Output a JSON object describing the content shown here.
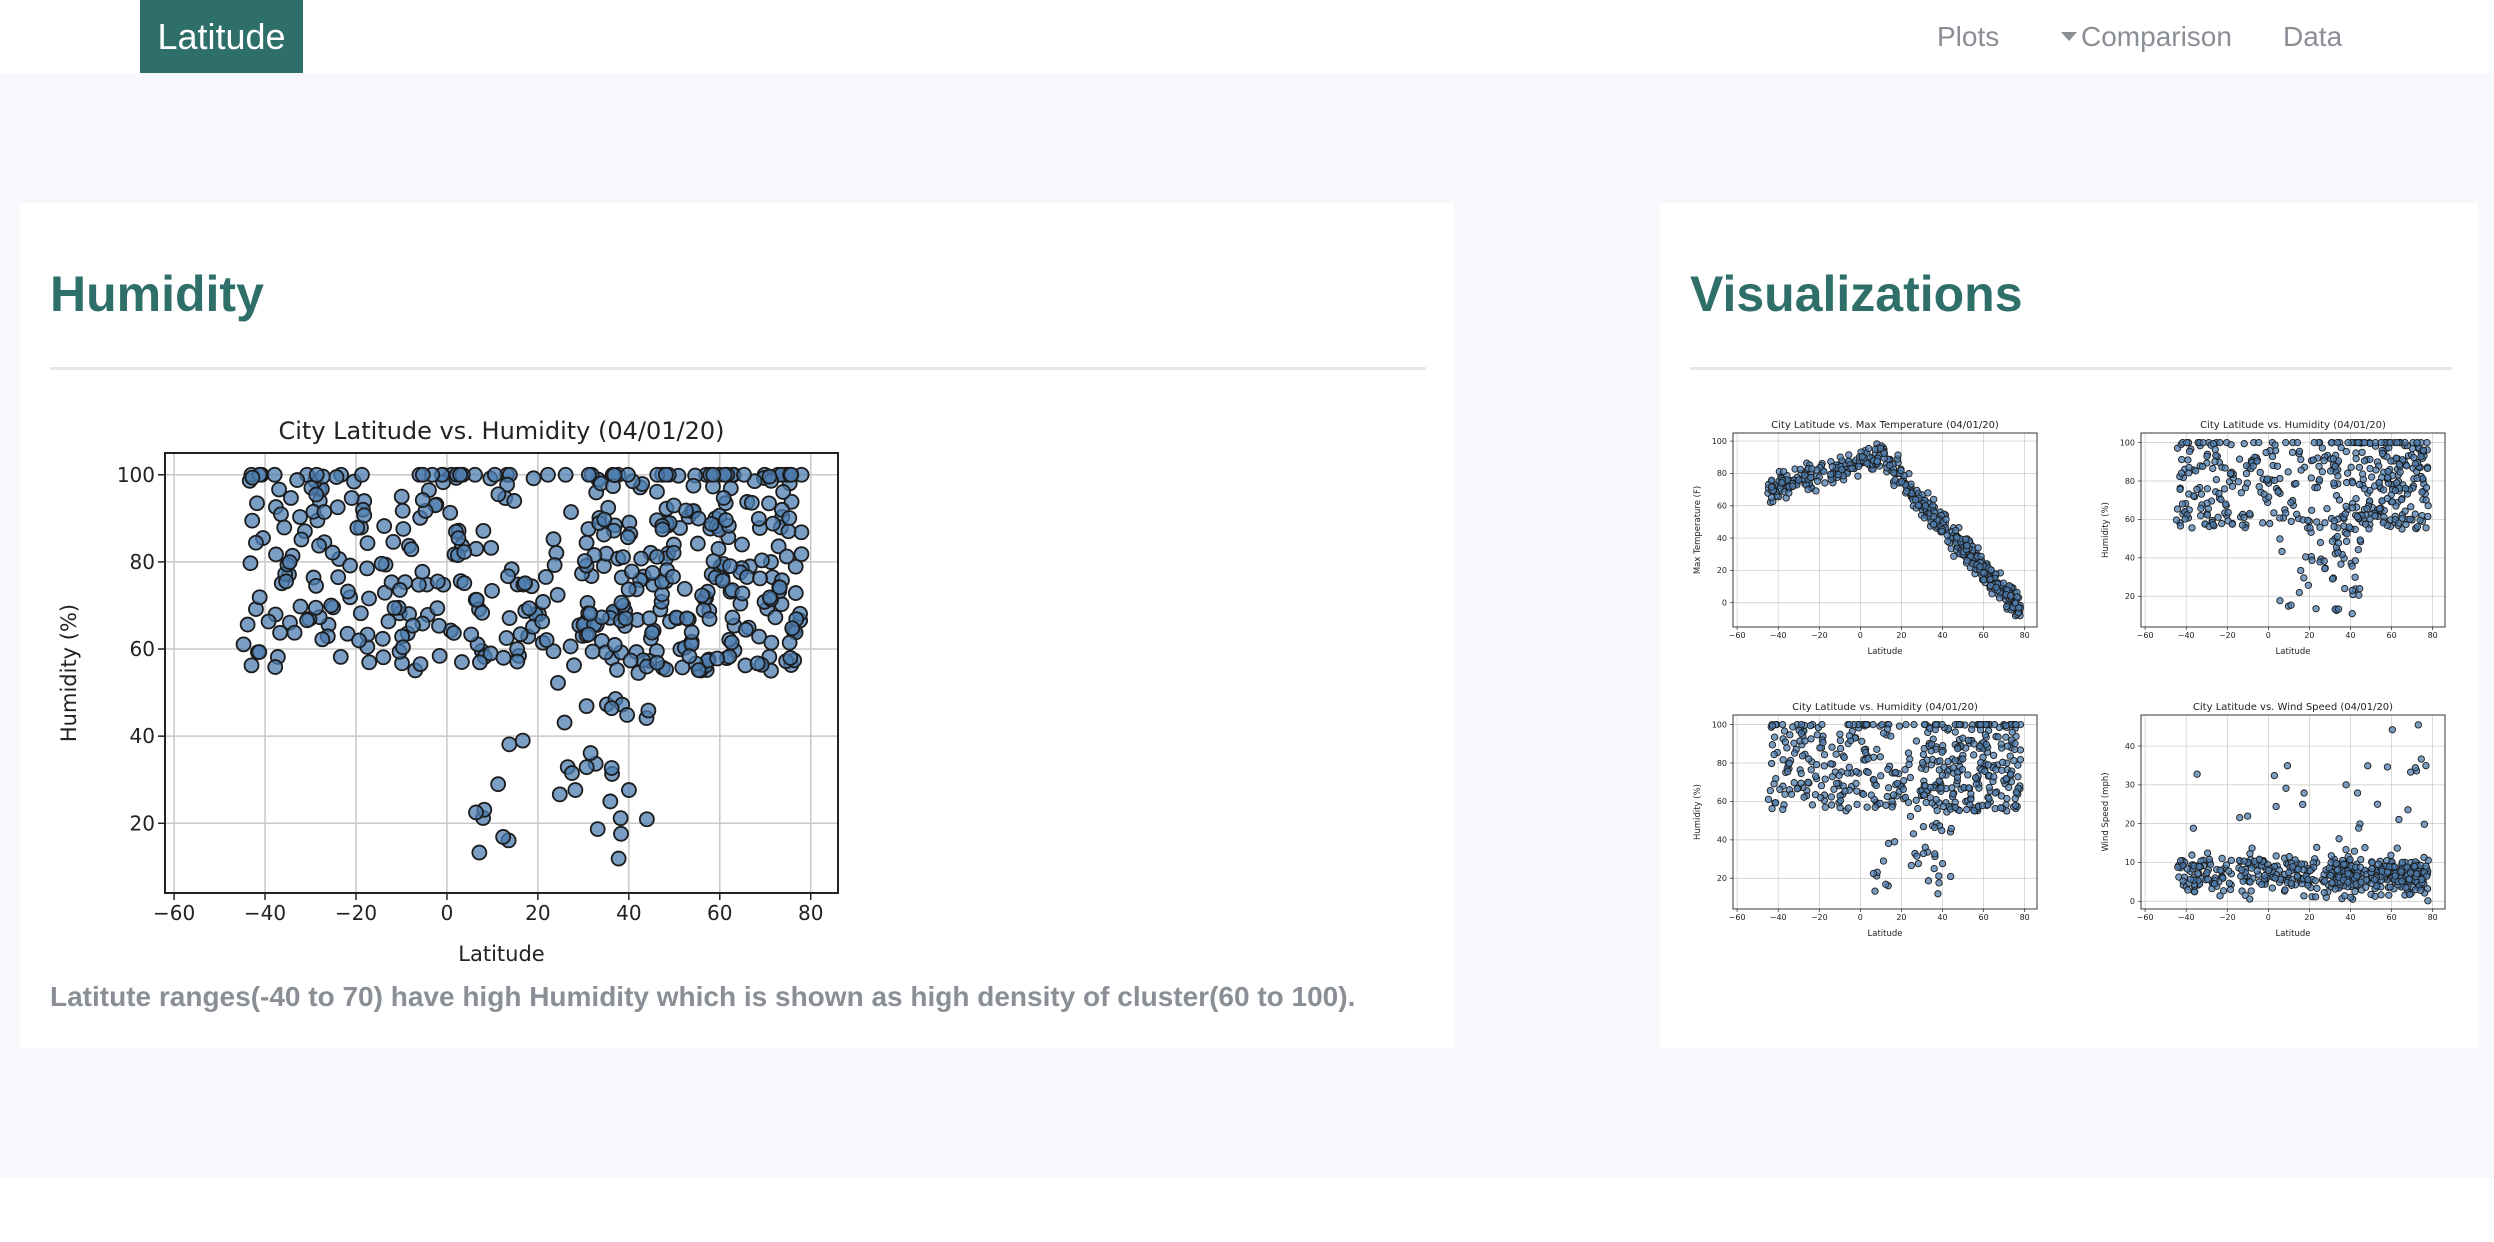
{
  "nav": {
    "brand": "Latitude",
    "plots": "Plots",
    "comparison": "Comparison",
    "data": "Data"
  },
  "left": {
    "title": "Humidity",
    "caption": "Latitute ranges(-40 to 70) have high Humidity which is shown as high density of cluster(60 to 100)."
  },
  "right": {
    "title": "Visualizations"
  },
  "colors": {
    "brand": "#2f6f6a",
    "marker": "#4d7eb0",
    "marker_edge": "#1b1b1b"
  },
  "chart_data": [
    {
      "id": "main",
      "type": "scatter",
      "title": "City Latitude vs. Humidity (04/01/20)",
      "xlabel": "Latitude",
      "ylabel": "Humidity (%)",
      "xlim": [
        -62,
        86
      ],
      "ylim": [
        4,
        105
      ],
      "xticks": [
        -60,
        -40,
        -20,
        0,
        20,
        40,
        60,
        80
      ],
      "yticks": [
        20,
        40,
        60,
        80,
        100
      ],
      "grid": true,
      "series": [
        {
          "shape": "humidity",
          "n": 520
        }
      ]
    },
    {
      "id": "thumb-temp",
      "type": "scatter",
      "title": "City Latitude vs. Max Temperature (04/01/20)",
      "xlabel": "Latitude",
      "ylabel": "Max Temperature (F)",
      "xlim": [
        -62,
        86
      ],
      "ylim": [
        -15,
        105
      ],
      "xticks": [
        -60,
        -40,
        -20,
        0,
        20,
        40,
        60,
        80
      ],
      "yticks": [
        0,
        20,
        40,
        60,
        80,
        100
      ],
      "grid": true,
      "series": [
        {
          "shape": "temperature",
          "n": 520
        }
      ]
    },
    {
      "id": "thumb-hum1",
      "type": "scatter",
      "title": "City Latitude vs. Humidity (04/01/20)",
      "xlabel": "Latitude",
      "ylabel": "Humidity (%)",
      "xlim": [
        -62,
        86
      ],
      "ylim": [
        4,
        105
      ],
      "xticks": [
        -60,
        -40,
        -20,
        0,
        20,
        40,
        60,
        80
      ],
      "yticks": [
        20,
        40,
        60,
        80,
        100
      ],
      "grid": true,
      "series": [
        {
          "shape": "humidity",
          "n": 520
        }
      ]
    },
    {
      "id": "thumb-hum2",
      "type": "scatter",
      "title": "City Latitude vs. Humidity (04/01/20)",
      "xlabel": "Latitude",
      "ylabel": "Humidity (%)",
      "xlim": [
        -62,
        86
      ],
      "ylim": [
        4,
        105
      ],
      "xticks": [
        -60,
        -40,
        -20,
        0,
        20,
        40,
        60,
        80
      ],
      "yticks": [
        20,
        40,
        60,
        80,
        100
      ],
      "grid": true,
      "series": [
        {
          "shape": "humidity",
          "n": 520
        }
      ]
    },
    {
      "id": "thumb-wind",
      "type": "scatter",
      "title": "City Latitude vs. Wind Speed (04/01/20)",
      "xlabel": "Latitude",
      "ylabel": "Wind Speed (mph)",
      "xlim": [
        -62,
        86
      ],
      "ylim": [
        -2,
        48
      ],
      "xticks": [
        -60,
        -40,
        -20,
        0,
        20,
        40,
        60,
        80
      ],
      "yticks": [
        0,
        10,
        20,
        30,
        40
      ],
      "grid": true,
      "series": [
        {
          "shape": "wind",
          "n": 520
        }
      ]
    }
  ]
}
